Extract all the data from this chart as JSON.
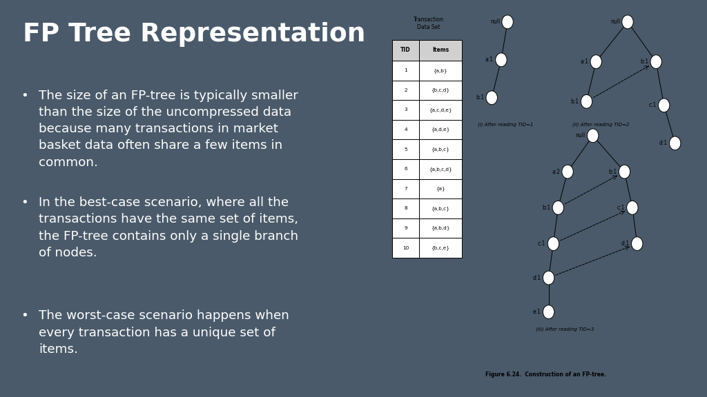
{
  "title": "FP Tree Representation",
  "bg_color": "#4a5a6a",
  "title_color": "#ffffff",
  "bullet_color": "#ffffff",
  "bullets": [
    "The size of an FP-tree is typically smaller\nthan the size of the uncompressed data\nbecause many transactions in market\nbasket data often share a few items in\ncommon.",
    "In the best-case scenario, where all the\ntransactions have the same set of items,\nthe FP-tree contains only a single branch\nof nodes.",
    "The worst-case scenario happens when\nevery transaction has a unique set of\nitems."
  ],
  "table_title": "Transaction\nData Set",
  "table_headers": [
    "TID",
    "Items"
  ],
  "table_rows": [
    [
      "1",
      "{a,b}"
    ],
    [
      "2",
      "{b,c,d}"
    ],
    [
      "3",
      "{a,c,d,e}"
    ],
    [
      "4",
      "{a,d,e}"
    ],
    [
      "5",
      "{a,b,c}"
    ],
    [
      "6",
      "{a,b,c,d}"
    ],
    [
      "7",
      "{a}"
    ],
    [
      "8",
      "{a,b,c}"
    ],
    [
      "9",
      "{a,b,d}"
    ],
    [
      "10",
      "{b,c,e}"
    ]
  ],
  "figure_caption": "Figure 6.24.  Construction of an FP-tree."
}
